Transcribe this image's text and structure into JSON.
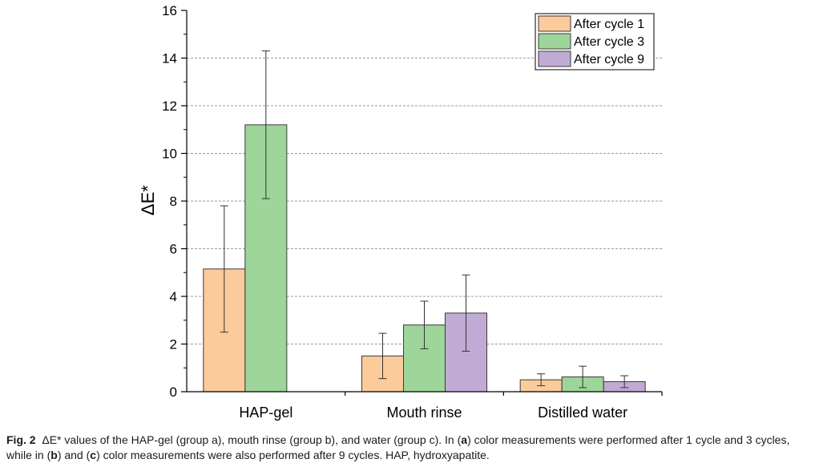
{
  "chart_data": {
    "type": "bar",
    "categories": [
      "HAP-gel",
      "Mouth rinse",
      "Distilled water"
    ],
    "ylabel": "ΔE*",
    "xlabel": "",
    "ylim": [
      0,
      16
    ],
    "yticks": [
      0,
      2,
      4,
      6,
      8,
      10,
      12,
      14,
      16
    ],
    "grid": true,
    "legend_position": "top-right",
    "series": [
      {
        "name": "After cycle 1",
        "color": "#FBCB9B",
        "values": [
          5.15,
          1.5,
          0.5
        ],
        "error": [
          2.65,
          0.95,
          0.25
        ]
      },
      {
        "name": "After cycle 3",
        "color": "#9ED59A",
        "values": [
          11.2,
          2.8,
          0.62
        ],
        "error": [
          3.1,
          1.0,
          0.45
        ]
      },
      {
        "name": "After cycle 9",
        "color": "#C0ABD5",
        "values": [
          null,
          3.3,
          0.42
        ],
        "error": [
          null,
          1.6,
          0.25
        ]
      }
    ]
  },
  "caption": {
    "fig_label": "Fig. 2",
    "part1": "ΔE* values of the HAP-gel (group a), mouth rinse (group b), and water (group c). In (",
    "a": "a",
    "part2": ") color measurements were performed after 1 cycle and 3 cycles, while in (",
    "b": "b",
    "part3": ") and (",
    "c": "c",
    "part4": ") color measurements were also performed after 9 cycles. HAP, hydroxyapatite."
  }
}
